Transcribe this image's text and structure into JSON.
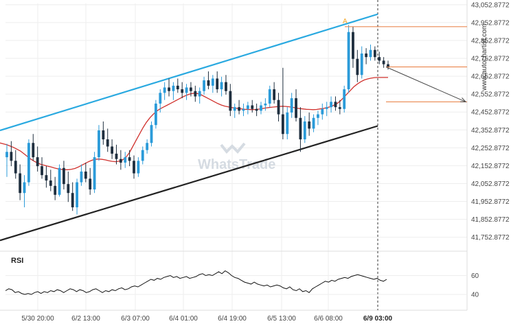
{
  "chart_data": {
    "type": "candlestick",
    "price_axis": {
      "ticks": [
        "43,052.8772",
        "42,952.8772",
        "42,852.8772",
        "42,752.8772",
        "42,652.8772",
        "42,552.8772",
        "42,452.8772",
        "42,352.8772",
        "42,252.8772",
        "42,152.8772",
        "42,052.8772",
        "41,952.8772",
        "41,852.8772",
        "41,752.8772"
      ],
      "ylim": [
        41690,
        43060
      ]
    },
    "time_axis": {
      "ticks": [
        "5/30 20:00",
        "6/2 13:00",
        "6/3 07:00",
        "6/4 01:00",
        "6/4 19:00",
        "6/5 13:00",
        "6/6 08:00",
        "6/9 03:00"
      ],
      "highlight": "6/9 03:00"
    },
    "rsi": {
      "label": "RSI",
      "ticks": [
        "60",
        "40"
      ],
      "ylim": [
        32,
        72
      ],
      "values": [
        44,
        46,
        45,
        42,
        43,
        41,
        40,
        41,
        40,
        42,
        43,
        41,
        43,
        42,
        44,
        43,
        45,
        44,
        42,
        44,
        46,
        45,
        43,
        45,
        44,
        42,
        43,
        45,
        46,
        44,
        42,
        44,
        43,
        45,
        44,
        46,
        47,
        45,
        46,
        48,
        49,
        48,
        50,
        52,
        54,
        56,
        55,
        57,
        56,
        58,
        59,
        60,
        58,
        59,
        57,
        58,
        59,
        57,
        58,
        59,
        61,
        62,
        60,
        61,
        60,
        62,
        64,
        62,
        65,
        63,
        60,
        58,
        57,
        55,
        53,
        52,
        51,
        53,
        51,
        50,
        49,
        50,
        48,
        49,
        50,
        49,
        47,
        46,
        48,
        45,
        44,
        46,
        43,
        44,
        42,
        46,
        48,
        50,
        52,
        54,
        53,
        55,
        54,
        56,
        57,
        58,
        57,
        59,
        60,
        61,
        60,
        59,
        58,
        57,
        56,
        57,
        55,
        54,
        56
      ],
      "color": "#111111"
    },
    "channel": {
      "upper": {
        "x1": 0,
        "y1": 42350,
        "x2": 135,
        "y2": 43000,
        "color": "#29a9e0"
      },
      "lower": {
        "x1": 0,
        "y1": 41735,
        "x2": 135,
        "y2": 42375,
        "color": "#222222"
      }
    },
    "moving_average": {
      "color": "#d0312d",
      "values": [
        42280,
        42275,
        42270,
        42262,
        42255,
        42245,
        42235,
        42220,
        42205,
        42190,
        42178,
        42168,
        42160,
        42155,
        42150,
        42146,
        42140,
        42135,
        42132,
        42130,
        42130,
        42133,
        42137,
        42145,
        42155,
        42165,
        42175,
        42183,
        42188,
        42190,
        42188,
        42185,
        42180,
        42177,
        42175,
        42178,
        42185,
        42200,
        42225,
        42260,
        42295,
        42330,
        42365,
        42395,
        42420,
        42440,
        42458,
        42470,
        42480,
        42490,
        42500,
        42510,
        42520,
        42530,
        42540,
        42548,
        42555,
        42558,
        42556,
        42550,
        42540,
        42530,
        42520,
        42510,
        42500,
        42492,
        42486,
        42482,
        42478,
        42475,
        42472,
        42470,
        42468,
        42467,
        42466,
        42467,
        42469,
        42472,
        42475,
        42478,
        42480,
        42482,
        42484,
        42485,
        42484,
        42482,
        42479,
        42475,
        42472,
        42470,
        42468,
        42467,
        42466,
        42467,
        42470,
        42473,
        42477,
        42482,
        42490,
        42500,
        42515,
        42535,
        42555,
        42575,
        42595,
        42610,
        42622,
        42632,
        42638,
        42642,
        42645,
        42646,
        42646,
        42646,
        42646
      ],
      "last": 42645
    },
    "candles": [
      {
        "o": 42200,
        "h": 42275,
        "l": 42090,
        "c": 42230
      },
      {
        "o": 42230,
        "h": 42290,
        "l": 42150,
        "c": 42180
      },
      {
        "o": 42180,
        "h": 42240,
        "l": 42080,
        "c": 42110
      },
      {
        "o": 42110,
        "h": 42160,
        "l": 41960,
        "c": 42000
      },
      {
        "o": 42000,
        "h": 42100,
        "l": 41920,
        "c": 42060
      },
      {
        "o": 42060,
        "h": 42300,
        "l": 42040,
        "c": 42280
      },
      {
        "o": 42280,
        "h": 42330,
        "l": 42180,
        "c": 42200
      },
      {
        "o": 42200,
        "h": 42260,
        "l": 42120,
        "c": 42150
      },
      {
        "o": 42150,
        "h": 42200,
        "l": 42080,
        "c": 42100
      },
      {
        "o": 42100,
        "h": 42150,
        "l": 42030,
        "c": 42070
      },
      {
        "o": 42070,
        "h": 42130,
        "l": 42010,
        "c": 42040
      },
      {
        "o": 42040,
        "h": 42090,
        "l": 41960,
        "c": 41990
      },
      {
        "o": 41990,
        "h": 42160,
        "l": 41980,
        "c": 42140
      },
      {
        "o": 42140,
        "h": 42180,
        "l": 42020,
        "c": 42050
      },
      {
        "o": 42050,
        "h": 42120,
        "l": 41950,
        "c": 42000
      },
      {
        "o": 42000,
        "h": 42060,
        "l": 41900,
        "c": 41920
      },
      {
        "o": 41920,
        "h": 42080,
        "l": 41880,
        "c": 42060
      },
      {
        "o": 42060,
        "h": 42160,
        "l": 42040,
        "c": 42120
      },
      {
        "o": 42120,
        "h": 42170,
        "l": 42060,
        "c": 42080
      },
      {
        "o": 42080,
        "h": 42140,
        "l": 41990,
        "c": 42020
      },
      {
        "o": 42020,
        "h": 42230,
        "l": 42000,
        "c": 42200
      },
      {
        "o": 42200,
        "h": 42380,
        "l": 42180,
        "c": 42350
      },
      {
        "o": 42350,
        "h": 42400,
        "l": 42270,
        "c": 42300
      },
      {
        "o": 42300,
        "h": 42360,
        "l": 42230,
        "c": 42260
      },
      {
        "o": 42260,
        "h": 42300,
        "l": 42190,
        "c": 42220
      },
      {
        "o": 42220,
        "h": 42270,
        "l": 42160,
        "c": 42190
      },
      {
        "o": 42190,
        "h": 42240,
        "l": 42130,
        "c": 42170
      },
      {
        "o": 42170,
        "h": 42230,
        "l": 42140,
        "c": 42200
      },
      {
        "o": 42200,
        "h": 42240,
        "l": 42150,
        "c": 42180
      },
      {
        "o": 42180,
        "h": 42210,
        "l": 42080,
        "c": 42110
      },
      {
        "o": 42110,
        "h": 42200,
        "l": 42090,
        "c": 42180
      },
      {
        "o": 42180,
        "h": 42260,
        "l": 42160,
        "c": 42240
      },
      {
        "o": 42240,
        "h": 42300,
        "l": 42220,
        "c": 42280
      },
      {
        "o": 42280,
        "h": 42400,
        "l": 42260,
        "c": 42380
      },
      {
        "o": 42380,
        "h": 42520,
        "l": 42360,
        "c": 42500
      },
      {
        "o": 42500,
        "h": 42580,
        "l": 42450,
        "c": 42560
      },
      {
        "o": 42560,
        "h": 42620,
        "l": 42520,
        "c": 42590
      },
      {
        "o": 42590,
        "h": 42640,
        "l": 42540,
        "c": 42570
      },
      {
        "o": 42570,
        "h": 42620,
        "l": 42520,
        "c": 42600
      },
      {
        "o": 42600,
        "h": 42640,
        "l": 42560,
        "c": 42580
      },
      {
        "o": 42580,
        "h": 42620,
        "l": 42530,
        "c": 42560
      },
      {
        "o": 42560,
        "h": 42610,
        "l": 42520,
        "c": 42590
      },
      {
        "o": 42590,
        "h": 42620,
        "l": 42540,
        "c": 42570
      },
      {
        "o": 42570,
        "h": 42600,
        "l": 42510,
        "c": 42540
      },
      {
        "o": 42540,
        "h": 42590,
        "l": 42500,
        "c": 42570
      },
      {
        "o": 42570,
        "h": 42650,
        "l": 42550,
        "c": 42630
      },
      {
        "o": 42630,
        "h": 42680,
        "l": 42580,
        "c": 42600
      },
      {
        "o": 42600,
        "h": 42660,
        "l": 42560,
        "c": 42640
      },
      {
        "o": 42640,
        "h": 42680,
        "l": 42560,
        "c": 42580
      },
      {
        "o": 42580,
        "h": 42650,
        "l": 42540,
        "c": 42620
      },
      {
        "o": 42620,
        "h": 42660,
        "l": 42550,
        "c": 42570
      },
      {
        "o": 42570,
        "h": 42610,
        "l": 42430,
        "c": 42460
      },
      {
        "o": 42460,
        "h": 42500,
        "l": 42420,
        "c": 42480
      },
      {
        "o": 42480,
        "h": 42520,
        "l": 42440,
        "c": 42460
      },
      {
        "o": 42460,
        "h": 42500,
        "l": 42430,
        "c": 42470
      },
      {
        "o": 42470,
        "h": 42510,
        "l": 42440,
        "c": 42490
      },
      {
        "o": 42490,
        "h": 42520,
        "l": 42450,
        "c": 42470
      },
      {
        "o": 42470,
        "h": 42500,
        "l": 42430,
        "c": 42460
      },
      {
        "o": 42460,
        "h": 42510,
        "l": 42440,
        "c": 42490
      },
      {
        "o": 42490,
        "h": 42530,
        "l": 42460,
        "c": 42500
      },
      {
        "o": 42500,
        "h": 42600,
        "l": 42480,
        "c": 42580
      },
      {
        "o": 42580,
        "h": 42620,
        "l": 42500,
        "c": 42520
      },
      {
        "o": 42520,
        "h": 42560,
        "l": 42400,
        "c": 42440
      },
      {
        "o": 42440,
        "h": 42700,
        "l": 42300,
        "c": 42330
      },
      {
        "o": 42330,
        "h": 42480,
        "l": 42300,
        "c": 42450
      },
      {
        "o": 42450,
        "h": 42560,
        "l": 42420,
        "c": 42530
      },
      {
        "o": 42530,
        "h": 42580,
        "l": 42400,
        "c": 42420
      },
      {
        "o": 42420,
        "h": 42480,
        "l": 42230,
        "c": 42300
      },
      {
        "o": 42300,
        "h": 42430,
        "l": 42280,
        "c": 42400
      },
      {
        "o": 42400,
        "h": 42450,
        "l": 42320,
        "c": 42360
      },
      {
        "o": 42360,
        "h": 42440,
        "l": 42340,
        "c": 42420
      },
      {
        "o": 42420,
        "h": 42460,
        "l": 42380,
        "c": 42440
      },
      {
        "o": 42440,
        "h": 42500,
        "l": 42410,
        "c": 42470
      },
      {
        "o": 42470,
        "h": 42510,
        "l": 42430,
        "c": 42480
      },
      {
        "o": 42480,
        "h": 42540,
        "l": 42450,
        "c": 42510
      },
      {
        "o": 42510,
        "h": 42540,
        "l": 42460,
        "c": 42480
      },
      {
        "o": 42480,
        "h": 42520,
        "l": 42440,
        "c": 42470
      },
      {
        "o": 42470,
        "h": 42600,
        "l": 42450,
        "c": 42580
      },
      {
        "o": 42580,
        "h": 42940,
        "l": 42560,
        "c": 42900
      },
      {
        "o": 42900,
        "h": 42930,
        "l": 42700,
        "c": 42750
      },
      {
        "o": 42750,
        "h": 42800,
        "l": 42620,
        "c": 42660
      },
      {
        "o": 42660,
        "h": 42820,
        "l": 42640,
        "c": 42780
      },
      {
        "o": 42780,
        "h": 42810,
        "l": 42720,
        "c": 42760
      },
      {
        "o": 42760,
        "h": 42830,
        "l": 42740,
        "c": 42800
      },
      {
        "o": 42800,
        "h": 42820,
        "l": 42740,
        "c": 42760
      },
      {
        "o": 42760,
        "h": 42790,
        "l": 42720,
        "c": 42740
      },
      {
        "o": 42740,
        "h": 42760,
        "l": 42700,
        "c": 42720
      },
      {
        "o": 42720,
        "h": 42740,
        "l": 42690,
        "c": 42705
      }
    ],
    "projection": {
      "label": "A",
      "high_line": 42930,
      "current_line": 42705,
      "target_line": 42510,
      "color": "#e8793a",
      "arrow_color": "#444444"
    },
    "source_label": "www.autochartist.com",
    "watermark": "WhatsTrade"
  }
}
